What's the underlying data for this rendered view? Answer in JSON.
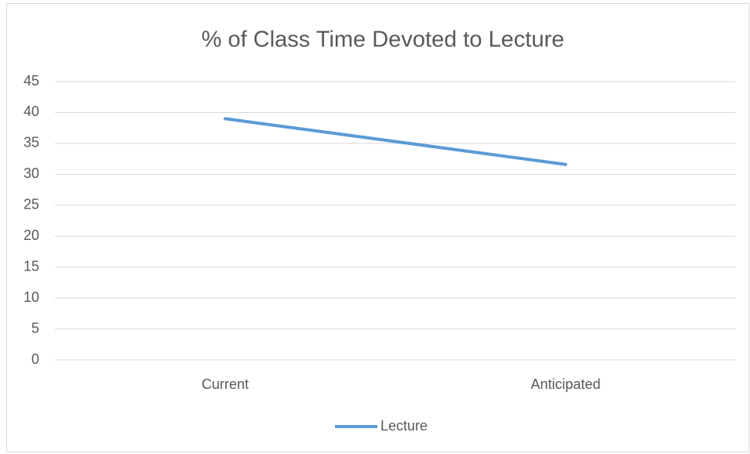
{
  "chart_data": {
    "type": "line",
    "title": "% of Class Time Devoted to Lecture",
    "categories": [
      "Current",
      "Anticipated"
    ],
    "series": [
      {
        "name": "Lecture",
        "color": "#5b9bd5",
        "values": [
          39,
          31.6
        ]
      }
    ],
    "ylim": [
      0,
      45
    ],
    "yticks": [
      0,
      5,
      10,
      15,
      20,
      25,
      30,
      35,
      40,
      45
    ],
    "grid": true,
    "legend": "bottom"
  }
}
